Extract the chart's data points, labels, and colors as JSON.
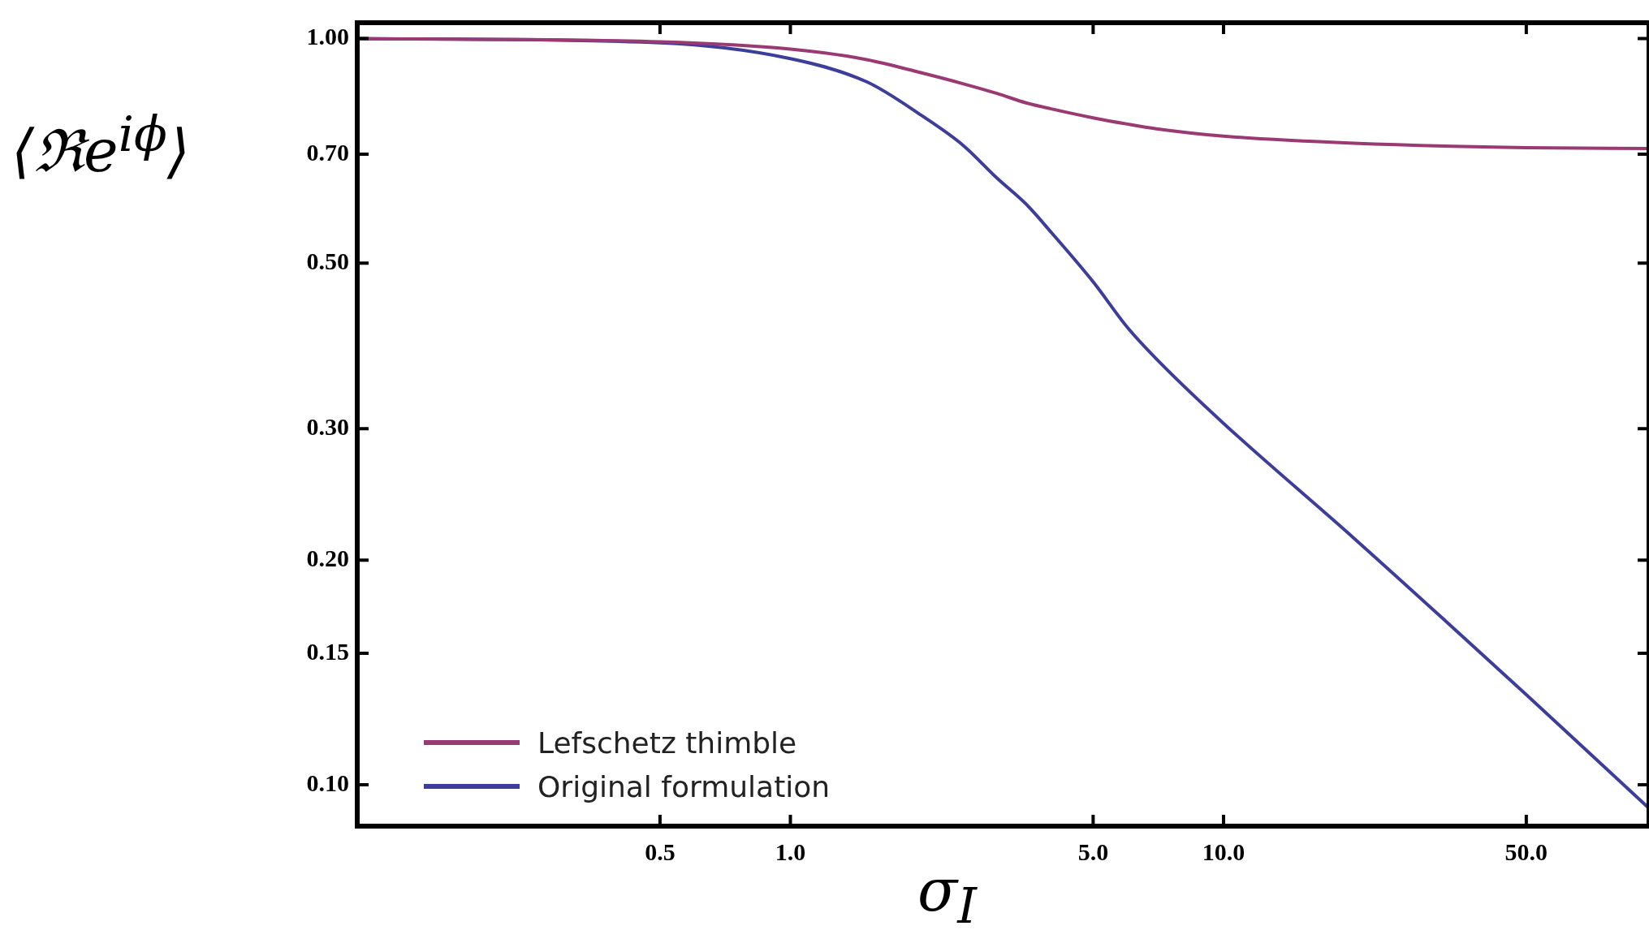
{
  "chart_data": {
    "type": "line",
    "xlabel": "σ$_{I}$",
    "ylabel": "⟨ℜe$^{iϕ}$⟩",
    "log": "xy",
    "grid": false,
    "legend": "bottom left",
    "marker": "none",
    "line_style": "solid",
    "xlim": [
      0.1,
      96
    ],
    "ylim": [
      0.088,
      1.05
    ],
    "xticks": [
      {
        "value": 0.5,
        "label": "0.5"
      },
      {
        "value": 1,
        "label": "1.0"
      },
      {
        "value": 5,
        "label": "5.0"
      },
      {
        "value": 10,
        "label": "10.0"
      },
      {
        "value": 50,
        "label": "50.0"
      }
    ],
    "yticks": [
      {
        "value": 0.1,
        "label": "0.10"
      },
      {
        "value": 0.15,
        "label": "0.15"
      },
      {
        "value": 0.2,
        "label": "0.20"
      },
      {
        "value": 0.3,
        "label": "0.30"
      },
      {
        "value": 0.5,
        "label": "0.50"
      },
      {
        "value": 0.7,
        "label": "0.70"
      },
      {
        "value": 1,
        "label": "1.00"
      }
    ],
    "x": [
      0.1,
      0.5,
      1,
      1.5,
      2,
      2.5,
      3,
      3.5,
      4,
      5,
      6,
      7,
      10,
      20,
      50,
      96
    ],
    "series": [
      {
        "name": "Lefschetz thimble",
        "color": "#9a3a72",
        "values": [
          1.0,
          0.99,
          0.968,
          0.937,
          0.9,
          0.87,
          0.844,
          0.82,
          0.805,
          0.783,
          0.768,
          0.757,
          0.74,
          0.724,
          0.714,
          0.712
        ]
      },
      {
        "name": "Original formulation",
        "color": "#3d3d9a",
        "values": [
          1.0,
          0.987,
          0.94,
          0.875,
          0.79,
          0.72,
          0.65,
          0.6,
          0.55,
          0.472,
          0.41,
          0.372,
          0.305,
          0.214,
          0.132,
          0.093
        ]
      }
    ]
  }
}
